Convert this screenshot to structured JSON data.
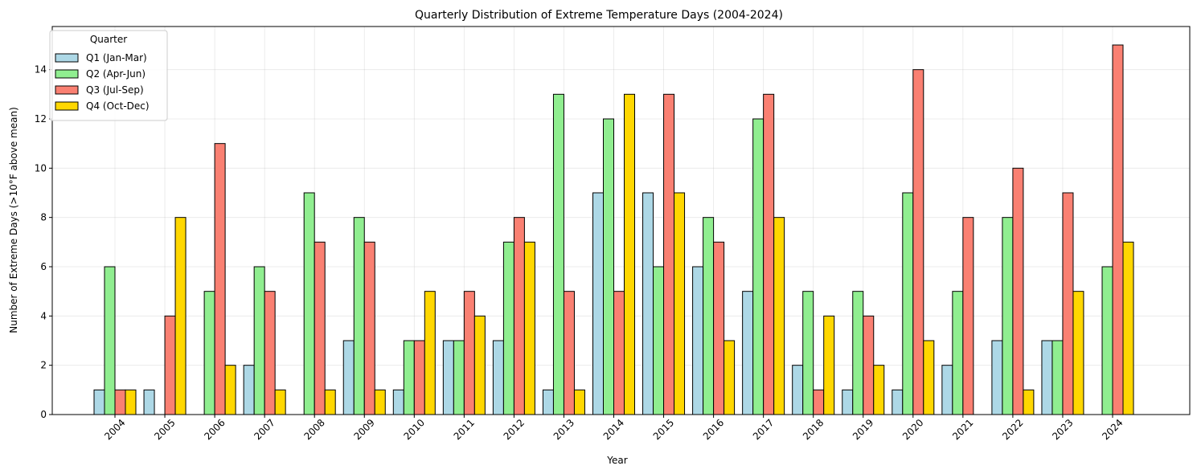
{
  "chart_data": {
    "type": "bar",
    "title": "Quarterly Distribution of Extreme Temperature Days (2004-2024)",
    "xlabel": "Year",
    "ylabel": "Number of Extreme Days (>10°F above mean)",
    "categories": [
      "2004",
      "2005",
      "2006",
      "2007",
      "2008",
      "2009",
      "2010",
      "2011",
      "2012",
      "2013",
      "2014",
      "2015",
      "2016",
      "2017",
      "2018",
      "2019",
      "2020",
      "2021",
      "2022",
      "2023",
      "2024"
    ],
    "ylim": [
      0,
      15.75
    ],
    "yticks": [
      0,
      2,
      4,
      6,
      8,
      10,
      12,
      14
    ],
    "grid": true,
    "legend": {
      "title": "Quarter",
      "position": "top-left"
    },
    "series": [
      {
        "name": "Q1 (Jan-Mar)",
        "color": "#add8e6",
        "values": [
          1,
          1,
          0,
          2,
          0,
          3,
          1,
          3,
          3,
          1,
          9,
          9,
          6,
          5,
          2,
          1,
          1,
          2,
          3,
          3,
          0
        ]
      },
      {
        "name": "Q2 (Apr-Jun)",
        "color": "#90ee90",
        "values": [
          6,
          0,
          5,
          6,
          9,
          8,
          3,
          3,
          7,
          13,
          12,
          6,
          8,
          12,
          5,
          5,
          9,
          5,
          8,
          3,
          6
        ]
      },
      {
        "name": "Q3 (Jul-Sep)",
        "color": "#fa8072",
        "values": [
          1,
          4,
          11,
          5,
          7,
          7,
          3,
          5,
          8,
          5,
          5,
          13,
          7,
          13,
          1,
          4,
          14,
          8,
          10,
          9,
          15
        ]
      },
      {
        "name": "Q4 (Oct-Dec)",
        "color": "#ffd700",
        "values": [
          1,
          8,
          2,
          1,
          1,
          1,
          5,
          4,
          7,
          1,
          13,
          9,
          3,
          8,
          4,
          2,
          3,
          0,
          1,
          5,
          7
        ]
      }
    ]
  }
}
